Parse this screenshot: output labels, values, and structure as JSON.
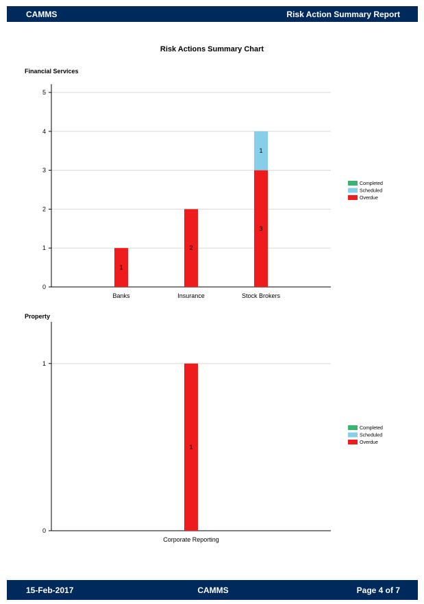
{
  "header": {
    "left": "CAMMS",
    "right": "Risk Action Summary Report"
  },
  "title": "Risk Actions Summary Chart",
  "legend": [
    {
      "name": "Completed",
      "color": "#3cb371"
    },
    {
      "name": "Scheduled",
      "color": "#87ceeb"
    },
    {
      "name": "Overdue",
      "color": "#ee1c1c"
    }
  ],
  "chart_data": [
    {
      "type": "bar",
      "stacked": true,
      "title": "Financial Services",
      "categories": [
        "Banks",
        "Insurance",
        "Stock Brokers"
      ],
      "series": [
        {
          "name": "Completed",
          "values": [
            0,
            0,
            0
          ]
        },
        {
          "name": "Scheduled",
          "values": [
            0,
            0,
            1
          ]
        },
        {
          "name": "Overdue",
          "values": [
            1,
            2,
            3
          ]
        }
      ],
      "ylim": [
        0,
        5
      ],
      "yticks": [
        0,
        1,
        2,
        3,
        4,
        5
      ],
      "grid": true,
      "legend_position": "right"
    },
    {
      "type": "bar",
      "stacked": true,
      "title": "Property",
      "categories": [
        "Corporate Reporting"
      ],
      "series": [
        {
          "name": "Completed",
          "values": [
            0
          ]
        },
        {
          "name": "Scheduled",
          "values": [
            0
          ]
        },
        {
          "name": "Overdue",
          "values": [
            1
          ]
        }
      ],
      "ylim": [
        0,
        1.2
      ],
      "yticks": [
        0,
        1
      ],
      "grid": true,
      "legend_position": "right"
    }
  ],
  "footer": {
    "date": "15-Feb-2017",
    "center": "CAMMS",
    "page": "Page 4 of 7"
  }
}
